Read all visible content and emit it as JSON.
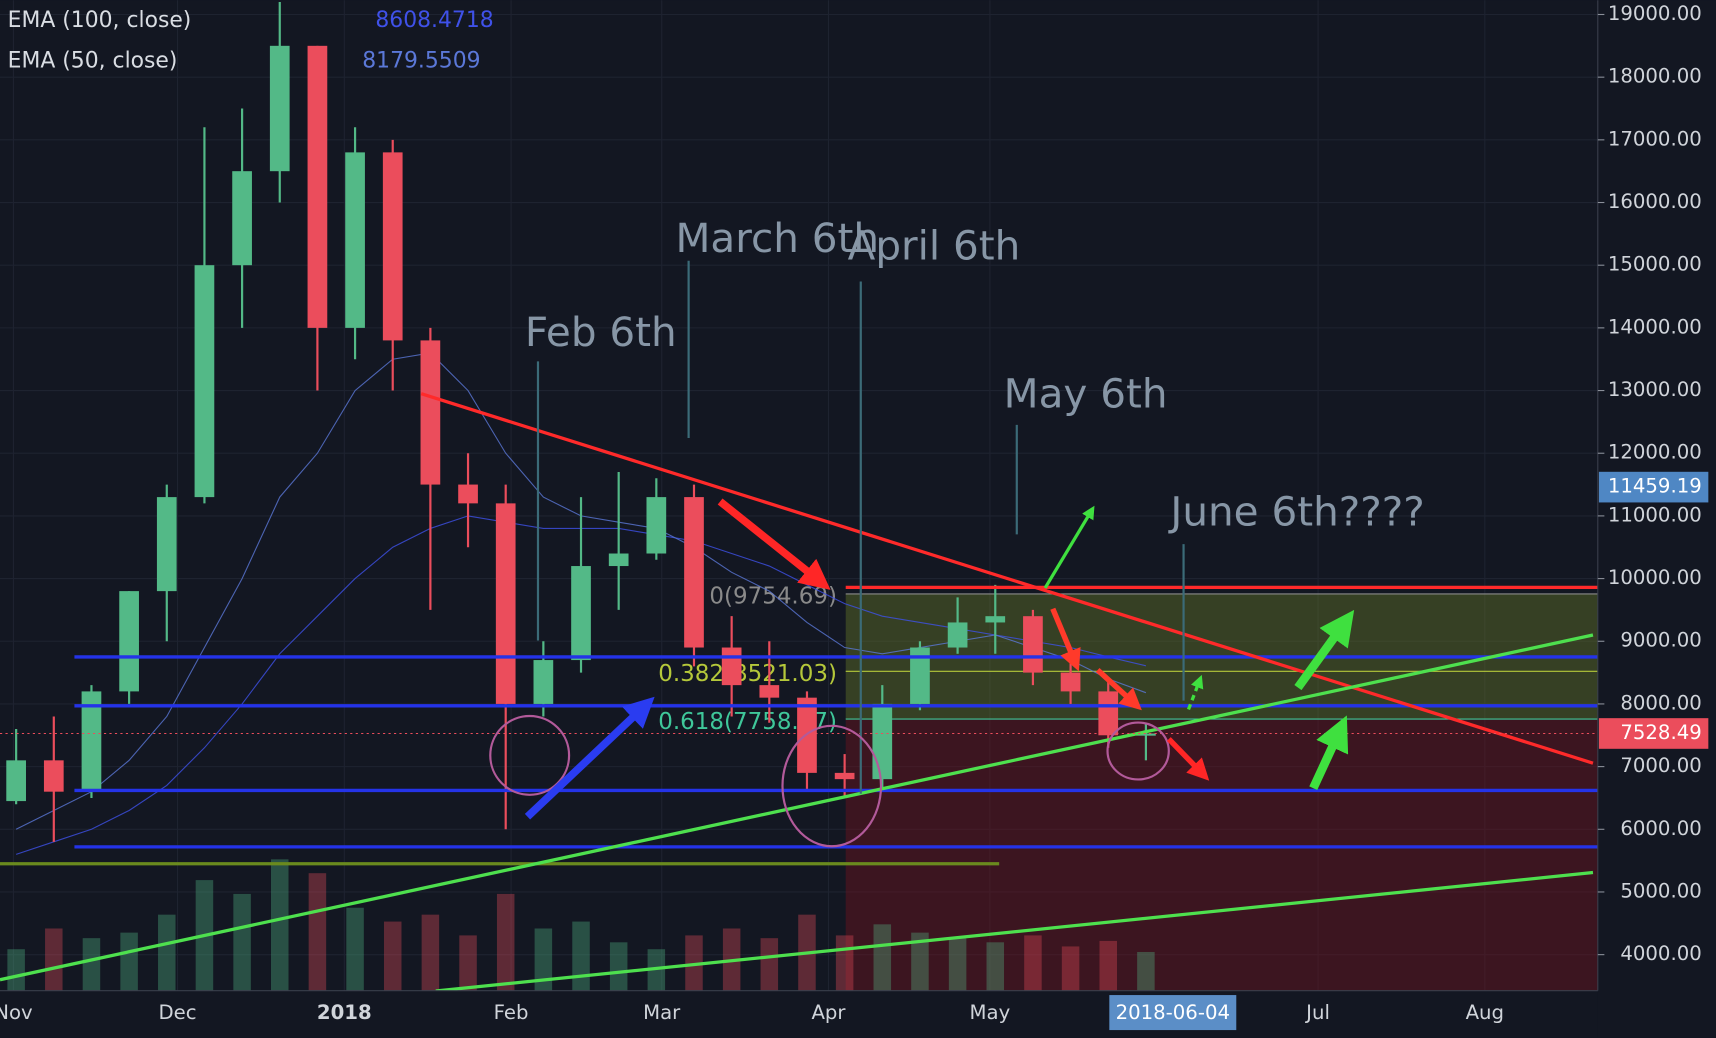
{
  "chart_data": {
    "type": "candlestick",
    "x": [
      0,
      7,
      14,
      21,
      28,
      35,
      42,
      49,
      56,
      63,
      70,
      77,
      84,
      91,
      98,
      105,
      112,
      119,
      126,
      133,
      140,
      147,
      154,
      161,
      168,
      175,
      182,
      189,
      196,
      203,
      210
    ],
    "open": [
      6450,
      7100,
      6600,
      8200,
      9800,
      11300,
      15000,
      16500,
      18500,
      14000,
      16800,
      13800,
      11500,
      11200,
      8000,
      8700,
      10200,
      10400,
      11300,
      8900,
      8300,
      8100,
      6900,
      6800,
      8000,
      8900,
      9300,
      9400,
      8500,
      8200,
      7500
    ],
    "high": [
      7600,
      7800,
      8300,
      9800,
      11500,
      17200,
      17500,
      19200,
      18500,
      17200,
      17000,
      14000,
      12000,
      11500,
      9000,
      11300,
      11700,
      11600,
      11500,
      9400,
      9000,
      8200,
      7200,
      8300,
      9000,
      9700,
      9900,
      9500,
      8800,
      8400,
      7700
    ],
    "low": [
      6400,
      5800,
      6500,
      8000,
      9000,
      11200,
      14000,
      16000,
      13000,
      13500,
      13000,
      9500,
      10500,
      6000,
      7800,
      8500,
      9500,
      10300,
      8600,
      7800,
      7700,
      6600,
      6500,
      6600,
      7900,
      8800,
      8800,
      8300,
      8000,
      7300,
      7100
    ],
    "close": [
      7100,
      6600,
      8200,
      9800,
      11300,
      15000,
      16500,
      18500,
      14000,
      16800,
      13800,
      11500,
      11200,
      8000,
      8700,
      10200,
      10400,
      11300,
      8900,
      8300,
      8100,
      6900,
      6800,
      8000,
      8900,
      9300,
      9400,
      8500,
      8200,
      7500,
      7528.49
    ],
    "volume": [
      30,
      45,
      38,
      42,
      55,
      80,
      70,
      95,
      85,
      60,
      50,
      55,
      40,
      70,
      45,
      50,
      35,
      30,
      40,
      45,
      38,
      55,
      40,
      48,
      42,
      38,
      35,
      40,
      32,
      36,
      28
    ],
    "series": [
      {
        "name": "EMA (100, close)",
        "color": "#3f51e8",
        "legend_value": 8608.4718,
        "values": [
          5600,
          5800,
          6000,
          6300,
          6700,
          7300,
          8000,
          8800,
          9400,
          10000,
          10500,
          10800,
          11000,
          10900,
          10800,
          10800,
          10800,
          10700,
          10600,
          10400,
          10200,
          9900,
          9600,
          9400,
          9300,
          9200,
          9100,
          9000,
          8900,
          8750,
          8608.4718
        ]
      },
      {
        "name": "EMA (50, close)",
        "color": "#5b78d8",
        "legend_value": 8179.5509,
        "values": [
          6000,
          6300,
          6600,
          7100,
          7800,
          8900,
          10000,
          11300,
          12000,
          13000,
          13500,
          13600,
          13000,
          12000,
          11300,
          11000,
          10900,
          10800,
          10500,
          10100,
          9800,
          9300,
          8900,
          8800,
          8900,
          9000,
          9100,
          8900,
          8700,
          8400,
          8179.5509
        ]
      }
    ],
    "xlim": [
      -3,
      294
    ],
    "xticks": [
      {
        "value": -0.5,
        "label": "Nov"
      },
      {
        "value": 30,
        "label": "Dec"
      },
      {
        "value": 61,
        "label": "2018"
      },
      {
        "value": 92,
        "label": "Feb"
      },
      {
        "value": 120,
        "label": "Mar"
      },
      {
        "value": 151,
        "label": "Apr"
      },
      {
        "value": 181,
        "label": "May"
      },
      {
        "value": 242,
        "label": "Jul"
      },
      {
        "value": 273,
        "label": "Aug"
      }
    ],
    "ylim": [
      3425,
      19227
    ],
    "yticks": [
      {
        "value": 4000,
        "label": "4000.00"
      },
      {
        "value": 5000,
        "label": "5000.00"
      },
      {
        "value": 6000,
        "label": "6000.00"
      },
      {
        "value": 7000,
        "label": "7000.00"
      },
      {
        "value": 8000,
        "label": "8000.00"
      },
      {
        "value": 9000,
        "label": "9000.00"
      },
      {
        "value": 10000,
        "label": "10000.00"
      },
      {
        "value": 11000,
        "label": "11000.00"
      },
      {
        "value": 12000,
        "label": "12000.00"
      },
      {
        "value": 13000,
        "label": "13000.00"
      },
      {
        "value": 14000,
        "label": "14000.00"
      },
      {
        "value": 15000,
        "label": "15000.00"
      },
      {
        "value": 16000,
        "label": "16000.00"
      },
      {
        "value": 17000,
        "label": "17000.00"
      },
      {
        "value": 18000,
        "label": "18000.00"
      },
      {
        "value": 19000,
        "label": "19000.00"
      }
    ],
    "current_price": 7528.49,
    "marked_price": 11459.19,
    "cursor_date": {
      "value": 215,
      "label": "2018-06-04"
    },
    "levels": [
      {
        "value": 8750,
        "color": "#2433e8"
      },
      {
        "value": 7970,
        "color": "#2433e8"
      },
      {
        "value": 6620,
        "color": "#2433e8"
      },
      {
        "value": 5720,
        "color": "#2433e8"
      },
      {
        "value": 5450,
        "color": "#6a8a1e"
      },
      {
        "value": 9860,
        "color": "#ff2a2a"
      }
    ],
    "trendlines": [
      {
        "x": [
          75.3,
          293.1
        ],
        "y": [
          12950,
          7055
        ],
        "color": "#ff2a2a"
      },
      {
        "x": [
          -3,
          293.1
        ],
        "y": [
          3600,
          9100
        ],
        "color": "#4ee04e"
      },
      {
        "x": [
          78,
          293.1
        ],
        "y": [
          3420,
          5310
        ],
        "color": "#4ee04e"
      }
    ],
    "fib": {
      "start": 154.2,
      "levels": [
        {
          "value": 9754.69,
          "label": "0(9754.69)"
        },
        {
          "value": 8521.03,
          "label": "0.382(8521.03)"
        },
        {
          "value": 7758.87,
          "label": "0.618(7758.87)"
        }
      ]
    },
    "annotations": [
      {
        "text": "Feb 6th",
        "x": 97
      },
      {
        "text": "March 6th",
        "x": 125
      },
      {
        "text": "April 6th",
        "x": 157
      },
      {
        "text": "May 6th",
        "x": 186
      },
      {
        "text": "June 6th????",
        "x": 217
      }
    ]
  }
}
